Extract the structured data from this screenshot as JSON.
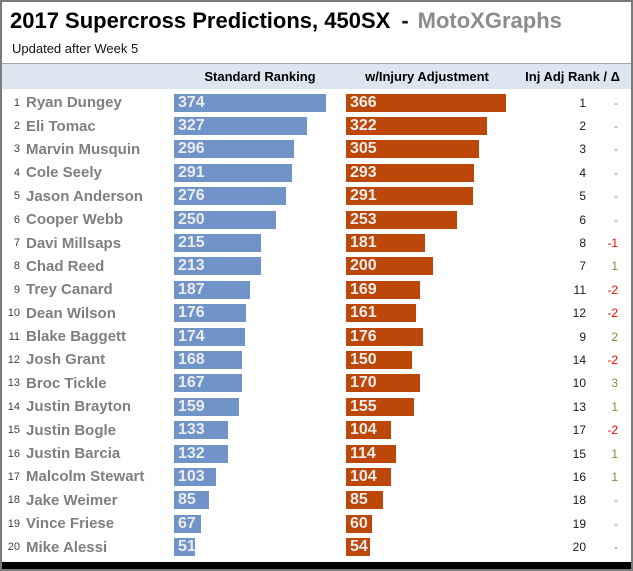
{
  "header": {
    "title_main": "2017 Supercross Predictions, 450SX",
    "title_separator": "-",
    "brand": "MotoXGraphs",
    "subtitle": "Updated after Week 5"
  },
  "columns": {
    "standard": "Standard Ranking",
    "injury": "w/Injury Adjustment",
    "rank_delta": "Inj Adj Rank / Δ"
  },
  "colors": {
    "bar_standard": "#7094C8",
    "bar_injury": "#BC4708",
    "bar_label": "#ECECEC",
    "name_text": "#7F7F7F",
    "header_band": "#DCE6F1",
    "brand_text": "#8C8C8C",
    "delta_negative": "#FF0000",
    "delta_positive": "#76933C",
    "delta_neutral": "#76933C"
  },
  "chart_data": {
    "type": "bar",
    "orientation": "horizontal",
    "title": "2017 Supercross Predictions, 450SX - MotoXGraphs",
    "subtitle": "Updated after Week 5",
    "grid": false,
    "legend_position": "column-headers",
    "value_labels": "inside-left",
    "xlim": [
      0,
      374
    ],
    "standard_ranks": [
      1,
      2,
      3,
      4,
      5,
      6,
      7,
      8,
      9,
      10,
      11,
      12,
      13,
      14,
      15,
      16,
      17,
      18,
      19,
      20
    ],
    "categories": [
      "Ryan Dungey",
      "Eli Tomac",
      "Marvin Musquin",
      "Cole Seely",
      "Jason Anderson",
      "Cooper Webb",
      "Davi Millsaps",
      "Chad Reed",
      "Trey Canard",
      "Dean Wilson",
      "Blake Baggett",
      "Josh Grant",
      "Broc Tickle",
      "Justin Brayton",
      "Justin Bogle",
      "Justin Barcia",
      "Malcolm Stewart",
      "Jake Weimer",
      "Vince Friese",
      "Mike Alessi"
    ],
    "series": [
      {
        "name": "Standard Ranking",
        "color": "#7094C8",
        "values": [
          374,
          327,
          296,
          291,
          276,
          250,
          215,
          213,
          187,
          176,
          174,
          168,
          167,
          159,
          133,
          132,
          103,
          85,
          67,
          51
        ]
      },
      {
        "name": "w/Injury Adjustment",
        "color": "#BC4708",
        "values": [
          366,
          322,
          305,
          293,
          291,
          253,
          181,
          200,
          169,
          161,
          176,
          150,
          170,
          155,
          104,
          114,
          104,
          85,
          60,
          54
        ]
      }
    ],
    "inj_adj_rank": [
      1,
      2,
      3,
      4,
      5,
      6,
      8,
      7,
      11,
      12,
      9,
      14,
      10,
      13,
      17,
      15,
      16,
      18,
      19,
      20
    ],
    "delta": [
      "-",
      "-",
      "-",
      "-",
      "-",
      "-",
      "-1",
      "1",
      "-2",
      "-2",
      "2",
      "-2",
      "3",
      "1",
      "-2",
      "1",
      "1",
      "-",
      "-",
      "-"
    ]
  }
}
